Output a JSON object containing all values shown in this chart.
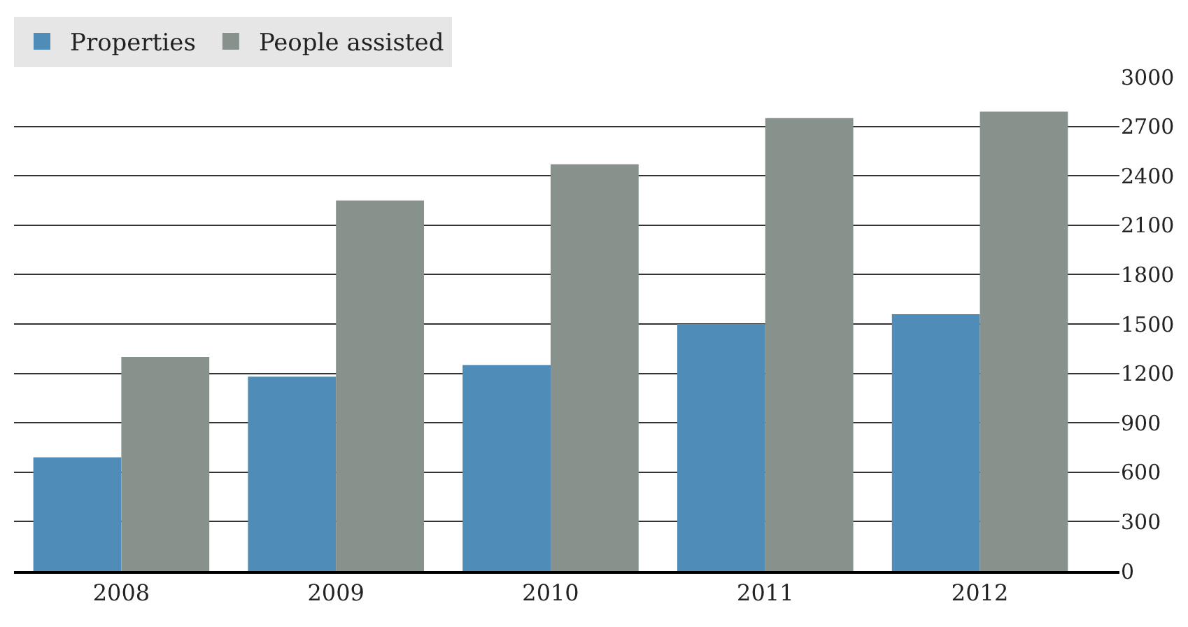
{
  "chart_data": {
    "type": "bar",
    "categories": [
      "2008",
      "2009",
      "2010",
      "2011",
      "2012"
    ],
    "series": [
      {
        "name": "Properties",
        "color": "#4f8db8",
        "values": [
          690,
          1180,
          1250,
          1500,
          1560
        ]
      },
      {
        "name": "People assisted",
        "color": "#87928d",
        "values": [
          1300,
          2250,
          2470,
          2750,
          2790
        ]
      }
    ],
    "ylim": [
      0,
      3000
    ],
    "yticks": [
      0,
      300,
      600,
      900,
      1200,
      1500,
      1800,
      2100,
      2400,
      2700,
      3000
    ],
    "grid": "y",
    "legend": "top left"
  }
}
